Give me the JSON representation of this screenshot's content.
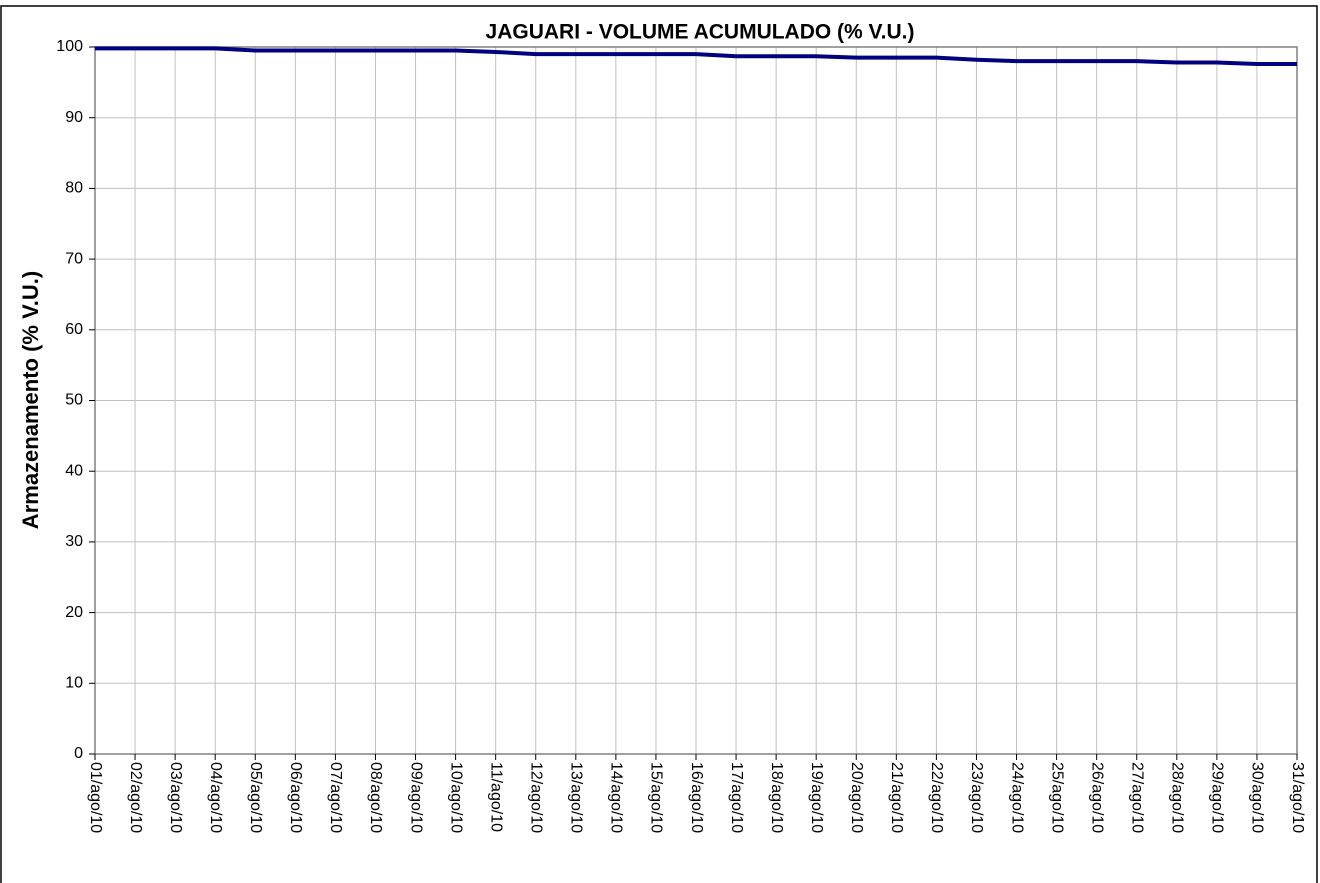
{
  "chart_data": {
    "type": "line",
    "title": "JAGUARI - VOLUME ACUMULADO (% V.U.)",
    "y_label": "Armazenamento (% V.U.)",
    "categories": [
      "01/ago/10",
      "02/ago/10",
      "03/ago/10",
      "04/ago/10",
      "05/ago/10",
      "06/ago/10",
      "07/ago/10",
      "08/ago/10",
      "09/ago/10",
      "10/ago/10",
      "11/ago/10",
      "12/ago/10",
      "13/ago/10",
      "14/ago/10",
      "15/ago/10",
      "16/ago/10",
      "17/ago/10",
      "18/ago/10",
      "19/ago/10",
      "20/ago/10",
      "21/ago/10",
      "22/ago/10",
      "23/ago/10",
      "24/ago/10",
      "25/ago/10",
      "26/ago/10",
      "27/ago/10",
      "28/ago/10",
      "29/ago/10",
      "30/ago/10",
      "31/ago/10"
    ],
    "series": [
      {
        "name": "JAGUARI",
        "color": "#000080",
        "values": [
          99.8,
          99.8,
          99.8,
          99.8,
          99.5,
          99.5,
          99.5,
          99.5,
          99.5,
          99.5,
          99.3,
          99.0,
          99.0,
          99.0,
          99.0,
          99.0,
          98.7,
          98.7,
          98.7,
          98.5,
          98.5,
          98.5,
          98.2,
          98.0,
          98.0,
          98.0,
          98.0,
          97.8,
          97.8,
          97.6,
          97.6
        ]
      }
    ],
    "ylim": [
      0,
      100
    ],
    "yticks": [
      0,
      10,
      20,
      30,
      40,
      50,
      60,
      70,
      80,
      90,
      100
    ],
    "grid": true
  }
}
